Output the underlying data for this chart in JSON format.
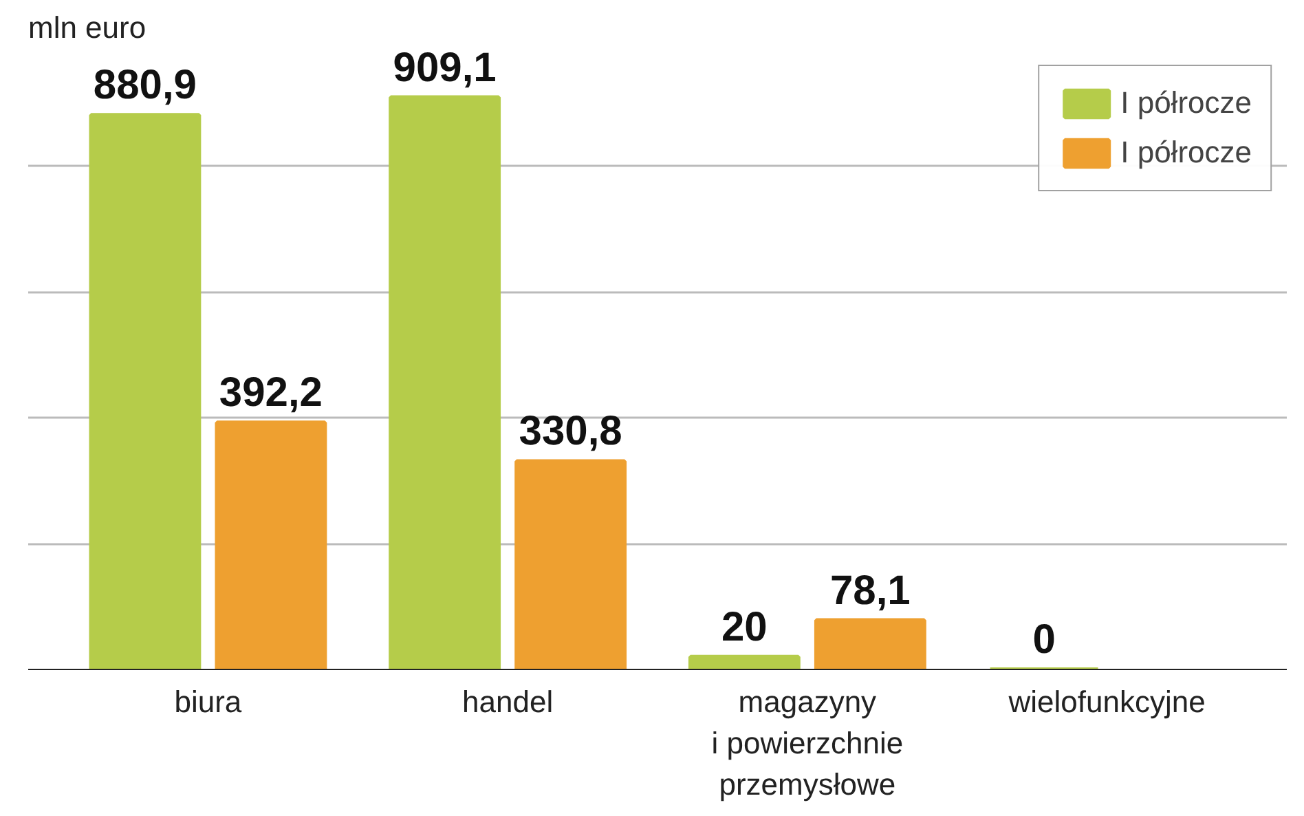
{
  "chart_data": {
    "type": "bar",
    "ylabel": "mln euro",
    "categories": [
      "biura",
      "handel",
      "magazyny\ni powierzchnie\nprzemysłowe",
      "wielofunkcyjne"
    ],
    "series": [
      {
        "name": "I półrocze",
        "color": "#b5cc4a",
        "values": [
          880.9,
          909.1,
          20,
          0
        ],
        "value_labels": [
          "880,9",
          "909,1",
          "20",
          "0"
        ]
      },
      {
        "name": "I półrocze",
        "color": "#eea030",
        "values": [
          392.2,
          330.8,
          78.1,
          null
        ],
        "value_labels": [
          "392,2",
          "330,8",
          "78,1",
          null
        ]
      }
    ],
    "tick_labels": "x",
    "grid": "y",
    "legend": "top right"
  }
}
